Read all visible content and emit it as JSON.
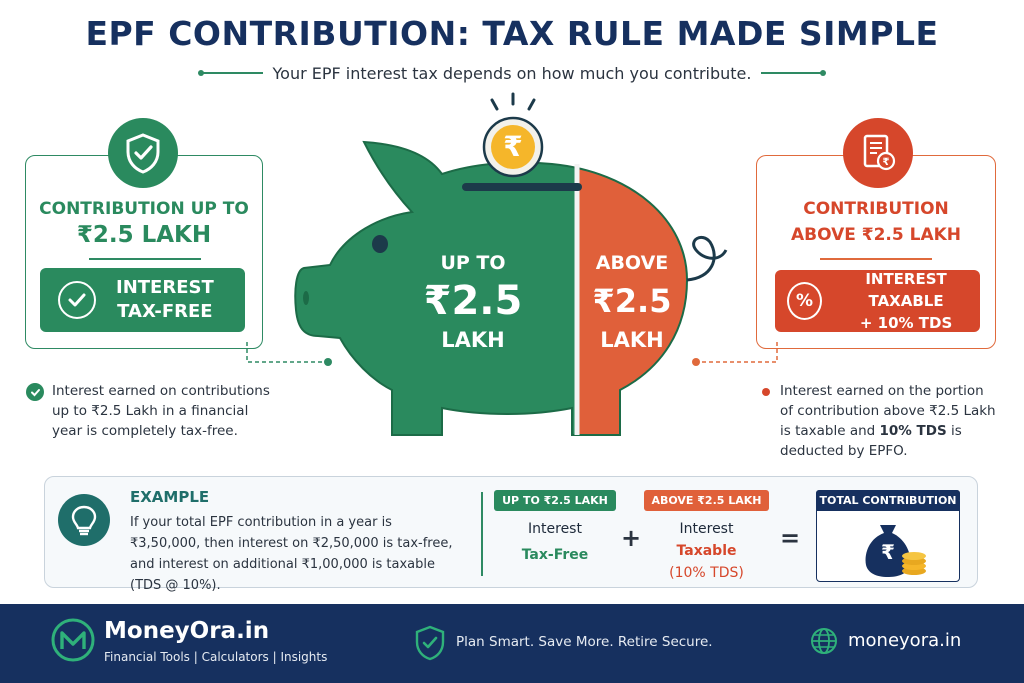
{
  "header": {
    "title": "EPF CONTRIBUTION: TAX RULE MADE SIMPLE",
    "subtitle": "Your EPF interest tax depends on how much you contribute."
  },
  "left_card": {
    "heading_line1": "CONTRIBUTION UP TO",
    "heading_line2": "₹2.5 LAKH",
    "pill_line1": "INTEREST",
    "pill_line2": "TAX-FREE",
    "note": "Interest earned on contributions up to ₹2.5 Lakh in a financial year is completely tax-free.",
    "icon": "shield-check-icon"
  },
  "right_card": {
    "heading_line1": "CONTRIBUTION",
    "heading_line2": "ABOVE ₹2.5 LAKH",
    "pill_line1": "INTEREST TAXABLE",
    "pill_line2": "+ 10% TDS",
    "pill_icon_text": "%",
    "note_part1": "Interest earned on the portion of contribution above ₹2.5 Lakh is taxable and ",
    "note_bold": "10% TDS",
    "note_part2": " is deducted by EPFO.",
    "icon": "tax-document-icon"
  },
  "piggy": {
    "coin_symbol": "₹",
    "green_line1": "UP TO",
    "green_line2": "₹2.5",
    "green_line3": "LAKH",
    "orange_line1": "ABOVE",
    "orange_line2": "₹2.5",
    "orange_line3": "LAKH"
  },
  "example": {
    "title": "EXAMPLE",
    "text": "If your total EPF contribution in a year is ₹3,50,000, then interest on ₹2,50,000 is tax-free, and interest on additional ₹1,00,000 is taxable (TDS @ 10%).",
    "col1_tag": "UP TO ₹2.5 LAKH",
    "col1_line1": "Interest",
    "col1_line2": "Tax-Free",
    "plus": "+",
    "col2_tag": "ABOVE ₹2.5 LAKH",
    "col2_line1": "Interest",
    "col2_line2": "Taxable",
    "col2_line3": "(10% TDS)",
    "equals": "=",
    "col3_tag": "TOTAL CONTRIBUTION",
    "bag_symbol": "₹"
  },
  "footer": {
    "brand": "MoneyOra.in",
    "brand_sub": "Financial Tools | Calculators | Insights",
    "tagline": "Plan Smart. Save More. Retire Secure.",
    "site": "moneyora.in"
  },
  "colors": {
    "navy": "#16305f",
    "green": "#2a8a5e",
    "orange": "#e0603a",
    "red": "#d6472b"
  }
}
